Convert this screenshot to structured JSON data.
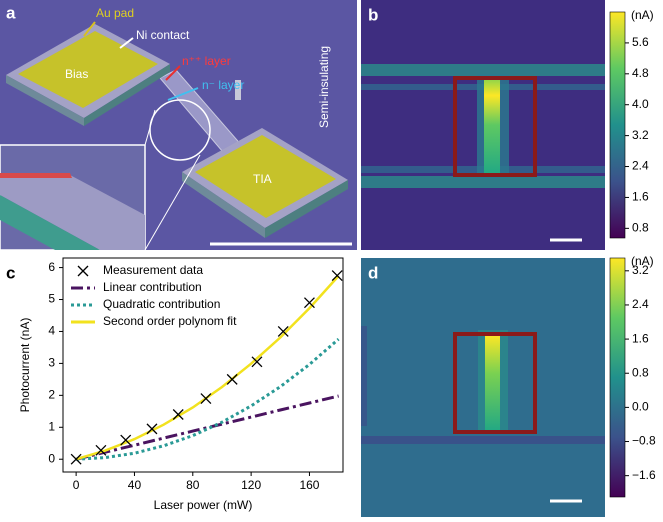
{
  "panels": {
    "a": "a",
    "b": "b",
    "c": "c",
    "d": "d"
  },
  "image_a": {
    "au_pad": "Au pad",
    "ni_contact": "Ni contact",
    "n_pp_layer": "n⁺⁺ layer",
    "n_m_layer": "n⁻ layer",
    "semi_insulating": "Semi-insulating",
    "bias": "Bias",
    "tia": "TIA"
  },
  "chart_data": [
    {
      "type": "line",
      "xlabel": "Laser power (mW)",
      "ylabel": "Photocurrent (nA)",
      "xlim": [
        -9,
        183
      ],
      "ylim": [
        -0.4,
        6.3
      ],
      "xticks": [
        0,
        40,
        80,
        120,
        160
      ],
      "yticks": [
        0,
        1,
        2,
        3,
        4,
        5,
        6
      ],
      "legend": "upper left",
      "series": [
        {
          "name": "Measurement data",
          "color": "#000000",
          "style": "markers",
          "x": [
            0,
            17,
            34,
            52,
            70,
            89,
            107,
            124,
            142,
            160,
            179
          ],
          "values": [
            0,
            0.28,
            0.6,
            0.95,
            1.4,
            1.9,
            2.5,
            3.05,
            4.0,
            4.9,
            5.75
          ]
        },
        {
          "name": "Linear contribution",
          "color": "#4a1460",
          "style": "dashdot",
          "x": [
            0,
            20,
            40,
            60,
            80,
            100,
            120,
            140,
            160,
            180
          ],
          "values": [
            0,
            0.22,
            0.44,
            0.66,
            0.88,
            1.1,
            1.32,
            1.54,
            1.76,
            1.98
          ]
        },
        {
          "name": "Quadratic contribution",
          "color": "#2a9a96",
          "style": "dotted",
          "x": [
            0,
            20,
            40,
            60,
            80,
            100,
            120,
            140,
            160,
            180
          ],
          "values": [
            0,
            0.05,
            0.19,
            0.42,
            0.74,
            1.16,
            1.67,
            2.27,
            2.97,
            3.76
          ]
        },
        {
          "name": "Second order polynom fit",
          "color": "#f2e21e",
          "style": "solid",
          "x": [
            0,
            20,
            40,
            60,
            80,
            100,
            120,
            140,
            160,
            180
          ],
          "values": [
            0,
            0.27,
            0.63,
            1.08,
            1.62,
            2.26,
            2.99,
            3.81,
            4.73,
            5.74
          ]
        }
      ]
    },
    {
      "type": "colorbar",
      "panel": "b",
      "unit": "(nA)",
      "ylim": [
        0.55,
        6.4
      ],
      "yticks": [
        0.8,
        1.6,
        2.4,
        3.2,
        {
          "value": 4.0,
          "label": "4.0"
        },
        4.8,
        5.6
      ]
    },
    {
      "type": "colorbar",
      "panel": "d",
      "unit": "(nA)",
      "ylim": [
        -2.1,
        3.5
      ],
      "yticks": [
        {
          "value": -1.6,
          "label": "−1.6"
        },
        {
          "value": -0.8,
          "label": "−0.8"
        },
        {
          "value": 0.0,
          "label": "0.0"
        },
        0.8,
        1.6,
        2.4,
        3.2
      ]
    }
  ]
}
